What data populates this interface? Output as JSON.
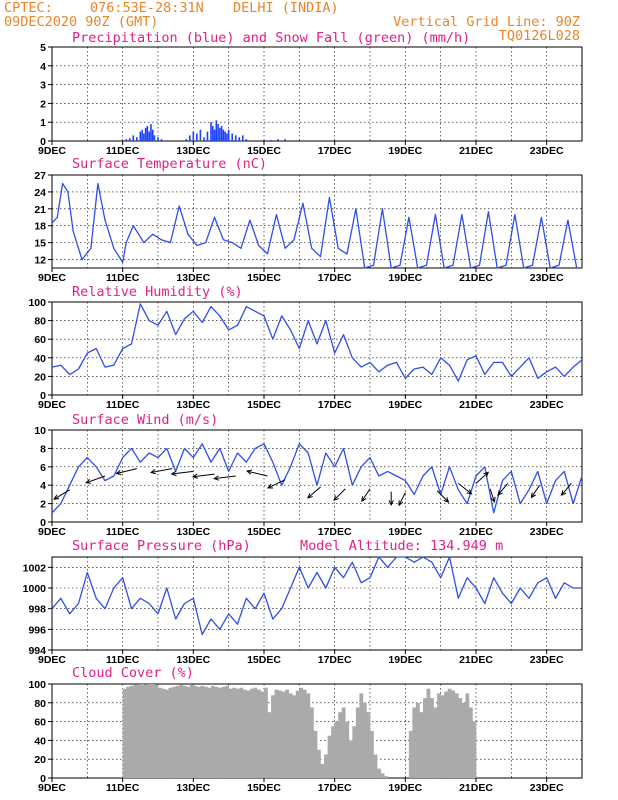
{
  "header": {
    "source": "CPTEC:",
    "coords": "076:53E-28:31N",
    "location": "DELHI (INDIA)",
    "run": "09DEC2020 90Z (GMT)",
    "grid_note": "Vertical Grid Line: 90Z",
    "code": "TQ0126L028"
  },
  "x_axis": {
    "ticks": [
      "9DEC",
      "11DEC",
      "13DEC",
      "15DEC",
      "17DEC",
      "19DEC",
      "21DEC",
      "23DEC"
    ],
    "range_days": [
      9,
      24
    ]
  },
  "colors": {
    "precip": "#1f3fff",
    "snow": "#1a9a1a",
    "line": "#2f4fe8",
    "arrow": "#000000",
    "cloud": "#aaaaaa",
    "header": "#e8862a",
    "title": "#e0208a"
  },
  "chart_data": [
    {
      "type": "bar",
      "title": "Precipitation (blue) and Snow Fall (green) (mm/h)",
      "ylim": [
        0,
        5
      ],
      "yticks": [
        0,
        1,
        2,
        3,
        4,
        5
      ],
      "series": [
        {
          "name": "Precipitation",
          "x": [
            11.1,
            11.2,
            11.3,
            11.4,
            11.5,
            11.55,
            11.6,
            11.65,
            11.7,
            11.75,
            11.8,
            11.85,
            11.9,
            12.0,
            12.1,
            12.8,
            12.9,
            13.0,
            13.1,
            13.2,
            13.3,
            13.4,
            13.5,
            13.55,
            13.6,
            13.65,
            13.7,
            13.75,
            13.8,
            13.85,
            13.9,
            13.95,
            14.0,
            14.1,
            14.2,
            14.3,
            14.4,
            14.5,
            15.2,
            15.4,
            15.6
          ],
          "values": [
            0.1,
            0.15,
            0.3,
            0.2,
            0.5,
            0.6,
            0.4,
            0.7,
            0.8,
            0.5,
            0.9,
            0.6,
            0.3,
            0.2,
            0.1,
            0.1,
            0.3,
            0.5,
            0.4,
            0.6,
            0.2,
            0.5,
            1.0,
            0.8,
            0.6,
            1.1,
            0.9,
            0.7,
            0.8,
            0.6,
            0.5,
            0.4,
            0.6,
            0.4,
            0.3,
            0.2,
            0.3,
            0.1,
            0.05,
            0.1,
            0.1
          ]
        },
        {
          "name": "Snow Fall",
          "x": [
            11.6,
            11.9,
            13.2,
            13.7
          ],
          "values": [
            0.05,
            0.05,
            0.05,
            0.05
          ]
        }
      ]
    },
    {
      "type": "line",
      "title": "Surface Temperature (nC)",
      "ylim": [
        10.5,
        27
      ],
      "yticks": [
        12,
        15,
        18,
        21,
        24,
        27
      ],
      "x": [
        9.0,
        9.15,
        9.3,
        9.45,
        9.6,
        9.85,
        10.1,
        10.3,
        10.5,
        10.75,
        11.0,
        11.1,
        11.3,
        11.6,
        11.85,
        12.1,
        12.35,
        12.6,
        12.85,
        13.1,
        13.35,
        13.6,
        13.85,
        14.1,
        14.35,
        14.6,
        14.85,
        15.1,
        15.35,
        15.6,
        15.85,
        16.1,
        16.35,
        16.6,
        16.85,
        17.1,
        17.35,
        17.6,
        17.85,
        18.1,
        18.35,
        18.6,
        18.85,
        19.1,
        19.35,
        19.6,
        19.85,
        20.1,
        20.35,
        20.6,
        20.85,
        21.1,
        21.35,
        21.6,
        21.85,
        22.1,
        22.35,
        22.6,
        22.85,
        23.1,
        23.35,
        23.6,
        23.85
      ],
      "values": [
        18.5,
        19.5,
        25.5,
        24,
        17,
        12,
        14,
        25.5,
        19,
        14,
        11.5,
        15,
        18,
        15,
        16.5,
        15.5,
        15,
        21.5,
        16.5,
        14.5,
        15,
        19.5,
        15.5,
        15,
        14,
        19,
        14.5,
        13,
        20,
        14,
        15.5,
        22,
        14,
        12.5,
        23,
        14,
        13,
        21,
        10.5,
        11,
        21,
        10.5,
        11,
        19.5,
        10.5,
        11,
        20,
        10.5,
        11,
        20,
        10.5,
        11,
        20.5,
        10.5,
        11,
        20,
        10.5,
        11,
        19.5,
        10.5,
        11,
        19,
        10.5
      ]
    },
    {
      "type": "line",
      "title": "Relative Humidity (%)",
      "ylim": [
        0,
        100
      ],
      "yticks": [
        0,
        20,
        40,
        60,
        80,
        100
      ],
      "x": [
        9.0,
        9.25,
        9.5,
        9.75,
        10.0,
        10.25,
        10.5,
        10.75,
        11.0,
        11.25,
        11.5,
        11.75,
        12.0,
        12.25,
        12.5,
        12.75,
        13.0,
        13.25,
        13.5,
        13.75,
        14.0,
        14.25,
        14.5,
        14.75,
        15.0,
        15.25,
        15.5,
        15.75,
        16.0,
        16.25,
        16.5,
        16.75,
        17.0,
        17.25,
        17.5,
        17.75,
        18.0,
        18.25,
        18.5,
        18.75,
        19.0,
        19.25,
        19.5,
        19.75,
        20.0,
        20.25,
        20.5,
        20.75,
        21.0,
        21.25,
        21.5,
        21.75,
        22.0,
        22.25,
        22.5,
        22.75,
        23.0,
        23.25,
        23.5,
        23.75,
        24.0
      ],
      "values": [
        30,
        32,
        22,
        28,
        45,
        50,
        30,
        32,
        50,
        55,
        98,
        80,
        75,
        90,
        65,
        82,
        90,
        78,
        95,
        85,
        70,
        75,
        95,
        90,
        85,
        60,
        85,
        70,
        50,
        80,
        55,
        80,
        45,
        65,
        40,
        30,
        35,
        25,
        32,
        35,
        18,
        28,
        30,
        22,
        40,
        32,
        15,
        38,
        42,
        22,
        35,
        35,
        20,
        30,
        40,
        18,
        25,
        30,
        20,
        30,
        38
      ]
    },
    {
      "type": "line",
      "title": "Surface Wind (m/s)",
      "ylim": [
        0,
        10
      ],
      "yticks": [
        0,
        2,
        4,
        6,
        8,
        10
      ],
      "x": [
        9.0,
        9.25,
        9.5,
        9.75,
        10.0,
        10.25,
        10.5,
        10.75,
        11.0,
        11.25,
        11.5,
        11.75,
        12.0,
        12.25,
        12.5,
        12.75,
        13.0,
        13.25,
        13.5,
        13.75,
        14.0,
        14.25,
        14.5,
        14.75,
        15.0,
        15.25,
        15.5,
        15.75,
        16.0,
        16.25,
        16.5,
        16.75,
        17.0,
        17.25,
        17.5,
        17.75,
        18.0,
        18.25,
        18.5,
        18.75,
        19.0,
        19.25,
        19.5,
        19.75,
        20.0,
        20.25,
        20.5,
        20.75,
        21.0,
        21.25,
        21.5,
        21.75,
        22.0,
        22.25,
        22.5,
        22.75,
        23.0,
        23.25,
        23.5,
        23.75,
        24.0
      ],
      "values": [
        1,
        2,
        4,
        6,
        7,
        6,
        4.5,
        5,
        7,
        8,
        6.5,
        7.5,
        7,
        8,
        5.5,
        8,
        7,
        8.5,
        6.5,
        8,
        5.5,
        7.5,
        6.5,
        8,
        8.5,
        6.5,
        4,
        6,
        8.5,
        7.5,
        4,
        7.5,
        6,
        8,
        4,
        6,
        7,
        5,
        5.5,
        5,
        4.5,
        3,
        5,
        6,
        3,
        6,
        3.5,
        2,
        5,
        6,
        1,
        4.5,
        5.5,
        2,
        3.5,
        5.5,
        2,
        4.5,
        5.5,
        2,
        5
      ]
    },
    {
      "type": "line",
      "title": "Surface Pressure (hPa)",
      "subtitle": "Model Altitude: 134.949 m",
      "ylim": [
        994,
        1003
      ],
      "yticks": [
        994,
        996,
        998,
        1000,
        1002
      ],
      "x": [
        9.0,
        9.25,
        9.5,
        9.75,
        10.0,
        10.25,
        10.5,
        10.75,
        11.0,
        11.25,
        11.5,
        11.75,
        12.0,
        12.25,
        12.5,
        12.75,
        13.0,
        13.25,
        13.5,
        13.75,
        14.0,
        14.25,
        14.5,
        14.75,
        15.0,
        15.25,
        15.5,
        15.75,
        16.0,
        16.25,
        16.5,
        16.75,
        17.0,
        17.25,
        17.5,
        17.75,
        18.0,
        18.25,
        18.5,
        18.75,
        19.0,
        19.25,
        19.5,
        19.75,
        20.0,
        20.25,
        20.5,
        20.75,
        21.0,
        21.25,
        21.5,
        21.75,
        22.0,
        22.25,
        22.5,
        22.75,
        23.0,
        23.25,
        23.5,
        23.75,
        24.0
      ],
      "values": [
        998,
        999,
        997.5,
        998.5,
        1001.5,
        999,
        998,
        1000,
        1001,
        998,
        999,
        998.5,
        997.5,
        1000,
        997,
        998.5,
        999,
        995.5,
        997,
        996,
        997.5,
        996.5,
        999,
        998,
        999.5,
        997,
        998,
        1000,
        1002,
        1000,
        1001.5,
        1000,
        1002,
        1001,
        1002.5,
        1000.5,
        1001,
        1003,
        1002,
        1003,
        1003,
        1002.5,
        1003,
        1002.5,
        1001,
        1003,
        999,
        1001,
        1000,
        998.5,
        1001,
        999.5,
        998.5,
        1000,
        999,
        1000.5,
        1001,
        999,
        1000.5,
        1000,
        1000
      ]
    },
    {
      "type": "bar",
      "title": "Cloud Cover (%)",
      "ylim": [
        0,
        100
      ],
      "yticks": [
        0,
        20,
        40,
        60,
        80,
        100
      ],
      "x": [
        11.0,
        11.1,
        11.2,
        11.3,
        11.4,
        11.5,
        11.6,
        11.7,
        11.8,
        11.9,
        12.0,
        12.1,
        12.2,
        12.3,
        12.4,
        12.5,
        12.6,
        12.7,
        12.8,
        12.9,
        13.0,
        13.1,
        13.2,
        13.3,
        13.4,
        13.5,
        13.6,
        13.7,
        13.8,
        13.9,
        14.0,
        14.1,
        14.2,
        14.3,
        14.4,
        14.5,
        14.6,
        14.7,
        14.8,
        14.9,
        15.0,
        15.1,
        15.2,
        15.3,
        15.4,
        15.5,
        15.6,
        15.7,
        15.8,
        15.9,
        16.0,
        16.1,
        16.2,
        16.3,
        16.4,
        16.5,
        16.6,
        16.7,
        16.8,
        16.9,
        17.0,
        17.1,
        17.2,
        17.3,
        17.4,
        17.5,
        17.6,
        17.7,
        17.8,
        17.9,
        18.0,
        18.1,
        18.2,
        18.3,
        18.4,
        18.5,
        18.6,
        18.7,
        18.8,
        18.9,
        19.0,
        19.1,
        19.2,
        19.3,
        19.4,
        19.5,
        19.6,
        19.7,
        19.8,
        19.9,
        20.0,
        20.1,
        20.2,
        20.3,
        20.4,
        20.5,
        20.6,
        20.7,
        20.8,
        20.9
      ],
      "values": [
        95,
        97,
        98,
        99,
        99,
        100,
        99,
        100,
        100,
        99,
        96,
        95,
        94,
        96,
        97,
        98,
        99,
        98,
        97,
        99,
        98,
        97,
        98,
        97,
        96,
        98,
        97,
        96,
        97,
        98,
        95,
        96,
        95,
        96,
        94,
        93,
        95,
        96,
        94,
        92,
        96,
        70,
        88,
        94,
        93,
        92,
        94,
        90,
        88,
        93,
        96,
        94,
        90,
        75,
        50,
        30,
        15,
        25,
        45,
        55,
        60,
        70,
        75,
        60,
        40,
        55,
        75,
        90,
        80,
        70,
        50,
        25,
        10,
        5,
        2,
        0,
        0,
        0,
        0,
        0,
        0,
        50,
        75,
        80,
        70,
        85,
        95,
        85,
        75,
        90,
        88,
        92,
        95,
        93,
        90,
        85,
        80,
        90,
        75,
        60
      ]
    }
  ]
}
